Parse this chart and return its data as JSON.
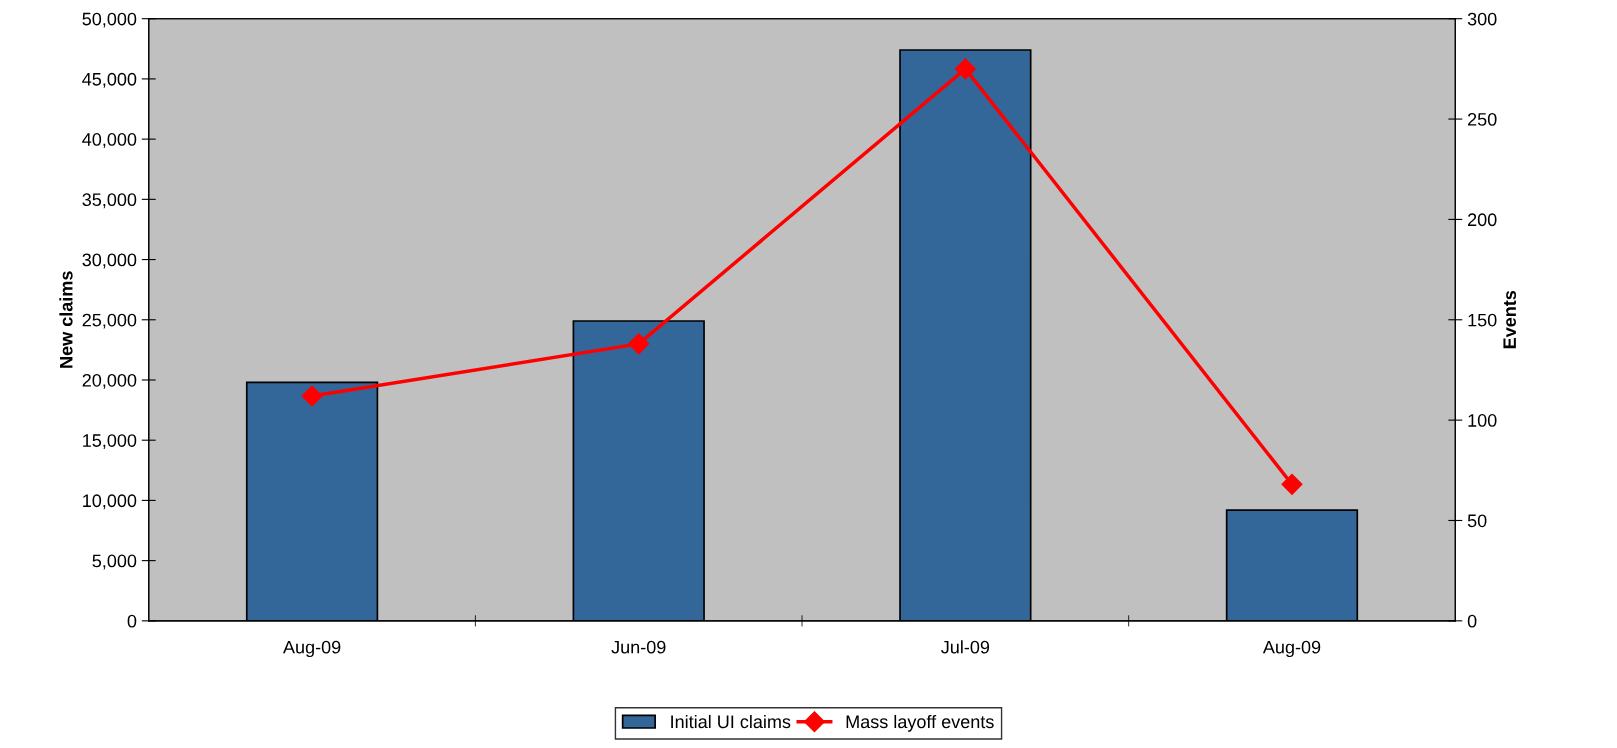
{
  "chart_data": {
    "type": "bar",
    "categories": [
      "Aug-09",
      "Jun-09",
      "Jul-09",
      "Aug-09"
    ],
    "ylabel": "New claims",
    "y2label": "Events",
    "ylim": [
      0,
      50000
    ],
    "yticks": [
      {
        "value": 0,
        "label": "0"
      },
      {
        "value": 5000,
        "label": "5,000"
      },
      {
        "value": 10000,
        "label": "10,000"
      },
      {
        "value": 15000,
        "label": "15,000"
      },
      {
        "value": 20000,
        "label": "20,000"
      },
      {
        "value": 25000,
        "label": "25,000"
      },
      {
        "value": 30000,
        "label": "30,000"
      },
      {
        "value": 35000,
        "label": "35,000"
      },
      {
        "value": 40000,
        "label": "40,000"
      },
      {
        "value": 45000,
        "label": "45,000"
      },
      {
        "value": 50000,
        "label": "50,000"
      }
    ],
    "y2lim": [
      0,
      300
    ],
    "y2ticks": [
      0,
      50,
      100,
      150,
      200,
      250,
      300
    ],
    "series": [
      {
        "name": "Initial UI claims",
        "color": "#336699",
        "values": [
          19800,
          24900,
          47400,
          9200
        ]
      },
      {
        "name": "Mass layoff events",
        "type": "line",
        "axis": "y2",
        "color": "#ff0000",
        "marker": "diamond",
        "values": [
          112,
          138,
          275,
          68
        ]
      }
    ],
    "legend": "bottom",
    "grid": false
  }
}
